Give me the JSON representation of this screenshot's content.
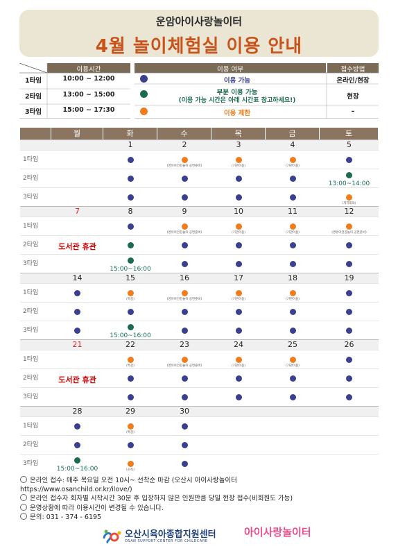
{
  "header": {
    "subtitle": "운암아이사랑놀이터",
    "title": "4월 놀이체험실 이용 안내"
  },
  "schedule": {
    "header": "이용시간",
    "rows": [
      {
        "label": "1타임",
        "time": "10:00 ~ 12:00"
      },
      {
        "label": "2타임",
        "time": "13:00 ~ 15:00"
      },
      {
        "label": "3타임",
        "time": "15:00 ~ 17:30"
      }
    ]
  },
  "legend": {
    "header_status": "이용 여부",
    "header_method": "접수방법",
    "rows": [
      {
        "text": "이용 가능",
        "text2": "",
        "color": "#3a3f8f",
        "method": "온라인/현장"
      },
      {
        "text": "부분 이용 가능",
        "text2": "(이용 가능 시간은 아래 시간표 참고하세요!)",
        "color": "#1d6b4f",
        "method": "현장"
      },
      {
        "text": "이용 제한",
        "text2": "",
        "color": "#f07d1b",
        "method": "–"
      }
    ]
  },
  "colors": {
    "available": "#3a3f8f",
    "partial": "#1d6b4f",
    "limited": "#f07d1b",
    "title": "#c8541b",
    "header_bg": "#8b7560"
  },
  "calendar": {
    "days": [
      "월",
      "화",
      "수",
      "목",
      "금",
      "토"
    ],
    "slot_labels": [
      "1타임",
      "2타임",
      "3타임"
    ],
    "weeks": [
      {
        "dates": [
          "",
          "1",
          "2",
          "3",
          "4",
          "5"
        ],
        "red": [],
        "slots": [
          [
            {},
            {
              "s": "a"
            },
            {
              "s": "l",
              "note": "(영유아건강놀이 공연준비)"
            },
            {
              "s": "l",
              "note": "(기관이용)"
            },
            {
              "s": "l",
              "note": "(기관이용)"
            },
            {
              "s": "a"
            }
          ],
          [
            {},
            {
              "s": "a"
            },
            {
              "s": "a"
            },
            {
              "s": "a"
            },
            {
              "s": "a"
            },
            {
              "s": "p",
              "time": "13:00~14:00"
            }
          ],
          [
            {},
            {
              "s": "a"
            },
            {
              "s": "a"
            },
            {
              "s": "a"
            },
            {
              "s": "a"
            },
            {
              "s": "l",
              "note": "(자치회의)"
            }
          ]
        ]
      },
      {
        "dates": [
          "7",
          "8",
          "9",
          "10",
          "11",
          "12"
        ],
        "red": [
          0
        ],
        "closed": "도서관 휴관",
        "slots": [
          [
            {},
            {
              "s": "a"
            },
            {
              "s": "l",
              "note": "(영유아건강놀이 공연준비)"
            },
            {
              "s": "l",
              "note": "(기관이용)"
            },
            {
              "s": "l",
              "note": "(기관이용)"
            },
            {
              "s": "l",
              "note": "(영유아건강놀이 공연준비)"
            }
          ],
          [
            {},
            {
              "s": "p"
            },
            {
              "s": "a"
            },
            {
              "s": "a"
            },
            {
              "s": "a"
            },
            {
              "s": "a"
            }
          ],
          [
            {},
            {
              "s": "p",
              "time": "15:00~16:00"
            },
            {
              "s": "a"
            },
            {
              "s": "a"
            },
            {
              "s": "a"
            },
            {
              "s": "a"
            }
          ]
        ]
      },
      {
        "dates": [
          "14",
          "15",
          "16",
          "17",
          "18",
          "19"
        ],
        "red": [],
        "slots": [
          [
            {
              "s": "a"
            },
            {
              "s": "l",
              "note": "(특강)"
            },
            {
              "s": "l",
              "note": "(영유아건강놀이 공연준비)"
            },
            {
              "s": "l",
              "note": "(기관이용)"
            },
            {
              "s": "l",
              "note": "(기관이용)"
            },
            {
              "s": "a"
            }
          ],
          [
            {
              "s": "a"
            },
            {
              "s": "a"
            },
            {
              "s": "a"
            },
            {
              "s": "a"
            },
            {
              "s": "a"
            },
            {
              "s": "a"
            }
          ],
          [
            {
              "s": "a"
            },
            {
              "s": "p",
              "time": "15:00~16:00"
            },
            {
              "s": "a"
            },
            {
              "s": "a"
            },
            {
              "s": "a"
            },
            {
              "s": "a"
            }
          ]
        ]
      },
      {
        "dates": [
          "21",
          "22",
          "23",
          "24",
          "25",
          "26"
        ],
        "red": [
          0
        ],
        "closed": "도서관 휴관",
        "slots": [
          [
            {},
            {
              "s": "l",
              "note": "(특강)"
            },
            {
              "s": "l",
              "note": "(영유아건강놀이 공연준비)"
            },
            {
              "s": "l",
              "note": "(기관이용)"
            },
            {
              "s": "l",
              "note": "(기관이용)"
            },
            {
              "s": "a"
            }
          ],
          [
            {},
            {
              "s": "a"
            },
            {
              "s": "a"
            },
            {
              "s": "a"
            },
            {
              "s": "a"
            },
            {
              "s": "a"
            }
          ],
          [
            {},
            {
              "s": "a"
            },
            {
              "s": "a"
            },
            {
              "s": "a"
            },
            {
              "s": "a"
            },
            {
              "s": "a"
            }
          ]
        ]
      },
      {
        "dates": [
          "28",
          "29",
          "30",
          "",
          "",
          ""
        ],
        "red": [],
        "slots": [
          [
            {
              "s": "a"
            },
            {
              "s": "l",
              "note": "(특강)"
            },
            {
              "s": "a"
            },
            {},
            {},
            {}
          ],
          [
            {
              "s": "a"
            },
            {
              "s": "a"
            },
            {
              "s": "a"
            },
            {},
            {},
            {}
          ],
          [
            {
              "s": "p",
              "time": "15:00~16:00"
            },
            {
              "s": "l",
              "note": "(소독)"
            },
            {
              "s": "a"
            },
            {},
            {},
            {}
          ]
        ]
      }
    ]
  },
  "footer": {
    "lines": [
      {
        "bullet": true,
        "text": "온라인 접수: 매주 목요일 오전 10시~ 선착순 마감 (오산시 아이사랑놀이터"
      },
      {
        "bullet": false,
        "text": "https://www.osanchild.or.kr/ilove/)"
      },
      {
        "bullet": true,
        "text": "온라인 접수자 회차별 시작시간 30분 후 입장하지 않은 인원만큼 당일 현장 접수(비회원도 가능)"
      },
      {
        "bullet": true,
        "text": "운영상황에 따라 이용시간이 변경될 수 있습니다."
      },
      {
        "bullet": true,
        "text": "문의: 031 - 374 - 6195"
      }
    ],
    "org_name": "오산시육아종합지원센터",
    "org_name_en": "OSAN SUPPORT CENTER FOR CHILDCARE",
    "brand": "아이사랑놀이터"
  }
}
